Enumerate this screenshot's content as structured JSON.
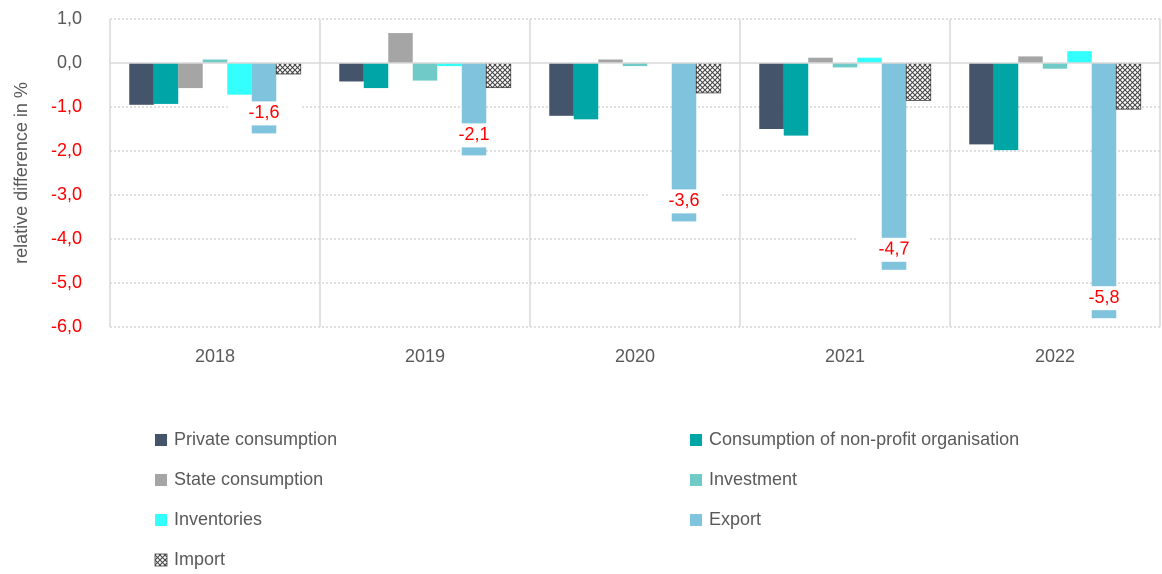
{
  "chart_data": {
    "type": "bar",
    "y_label": "relative difference in %",
    "categories": [
      "2018",
      "2019",
      "2020",
      "2021",
      "2022"
    ],
    "series": [
      {
        "name": "Private consumption",
        "color": "#44546a",
        "values": [
          -0.95,
          -0.42,
          -1.2,
          -1.5,
          -1.85
        ]
      },
      {
        "name": "Consumption of non-profit organisation",
        "color": "#00a5a5",
        "values": [
          -0.93,
          -0.57,
          -1.28,
          -1.65,
          -1.98
        ]
      },
      {
        "name": "State consumption",
        "color": "#a5a5a5",
        "values": [
          -0.57,
          0.68,
          0.08,
          0.12,
          0.15
        ]
      },
      {
        "name": "Investment",
        "color": "#70cbc8",
        "values": [
          0.08,
          -0.4,
          -0.07,
          -0.1,
          -0.13
        ]
      },
      {
        "name": "Inventories",
        "color": "#33ffff",
        "values": [
          -0.72,
          -0.07,
          0.0,
          0.12,
          0.27
        ]
      },
      {
        "name": "Export",
        "color": "#7fc3dc",
        "values": [
          -1.6,
          -2.1,
          -3.6,
          -4.7,
          -5.8
        ],
        "value_labels": [
          "-1,6",
          "-2,1",
          "-3,6",
          "-4,7",
          "-5,8"
        ]
      },
      {
        "name": "Import",
        "color": "#404040",
        "pattern": "crosshatch",
        "values": [
          -0.25,
          -0.56,
          -0.68,
          -0.85,
          -1.05
        ]
      }
    ],
    "ylim": [
      -6,
      1
    ],
    "yticks": [
      {
        "value": 1,
        "label": "1,0"
      },
      {
        "value": 0,
        "label": "0,0"
      },
      {
        "value": -1,
        "label": "-1,0"
      },
      {
        "value": -2,
        "label": "-2,0"
      },
      {
        "value": -3,
        "label": "-3,0"
      },
      {
        "value": -4,
        "label": "-4,0"
      },
      {
        "value": -5,
        "label": "-5,0"
      },
      {
        "value": -6,
        "label": "-6,0"
      }
    ],
    "grid": true,
    "negative_color": "#ff0000",
    "legend": "bottom"
  }
}
